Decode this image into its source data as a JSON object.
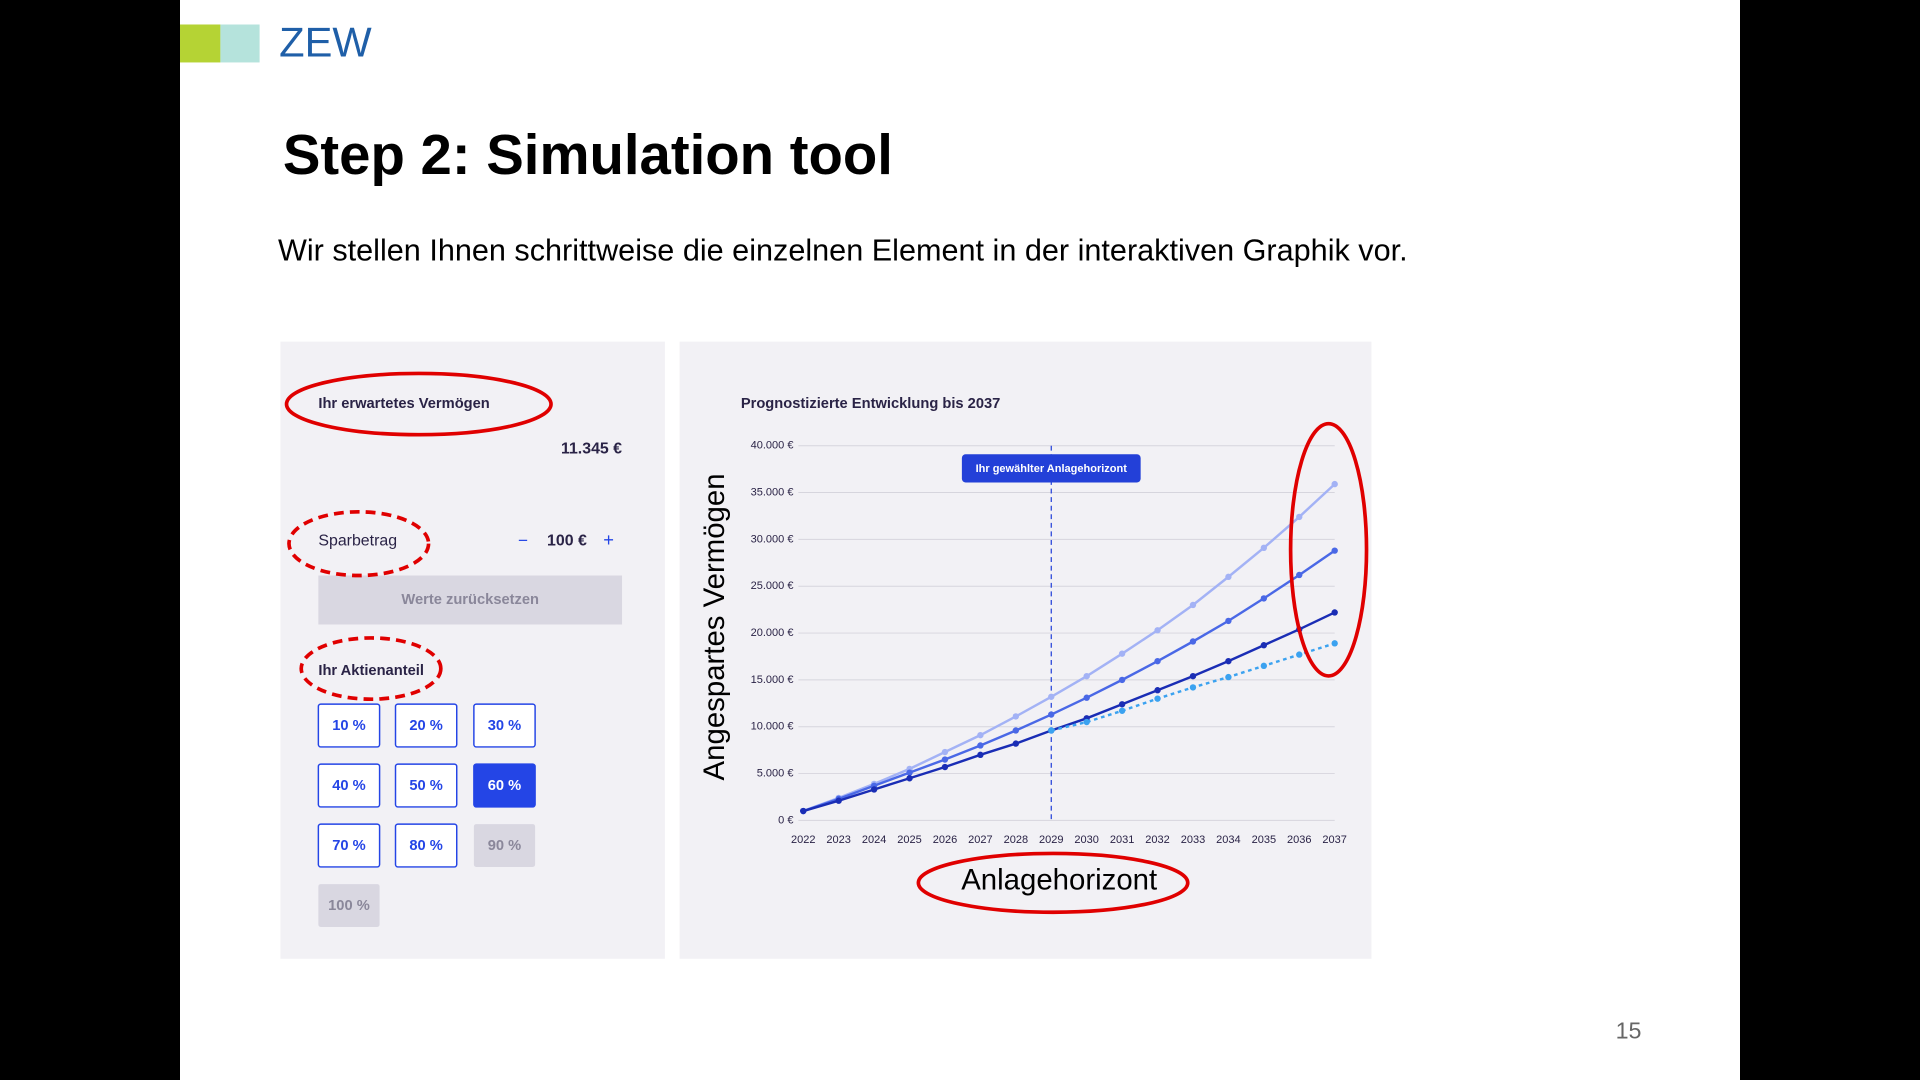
{
  "header": {
    "logo": "ZEW",
    "title": "Step 2: Simulation tool",
    "subtitle": "Wir stellen Ihnen schrittweise die einzelnen Element in der interaktiven Graphik vor.",
    "page_number": "15"
  },
  "panel": {
    "wealth_label": "Ihr erwartetes Vermögen",
    "wealth_value": "11.345 €",
    "savings_label": "Sparbetrag",
    "minus": "−",
    "savings_value": "100 €",
    "plus": "+",
    "reset": "Werte zurücksetzen",
    "share_label": "Ihr Aktienanteil",
    "share_buttons": [
      {
        "label": "10 %",
        "state": "enabled"
      },
      {
        "label": "20 %",
        "state": "enabled"
      },
      {
        "label": "30 %",
        "state": "enabled"
      },
      {
        "label": "40 %",
        "state": "enabled"
      },
      {
        "label": "50 %",
        "state": "enabled"
      },
      {
        "label": "60 %",
        "state": "selected"
      },
      {
        "label": "70 %",
        "state": "enabled"
      },
      {
        "label": "80 %",
        "state": "enabled"
      },
      {
        "label": "90 %",
        "state": "disabled"
      },
      {
        "label": "100 %",
        "state": "disabled"
      }
    ]
  },
  "chart_data": {
    "type": "line",
    "title": "Prognostizierte Entwicklung bis 2037",
    "y_label": "Angespartes Vermögen",
    "x_label": "Anlagehorizont",
    "annotation": {
      "text": "Ihr gewählter Anlagehorizont",
      "x": "2029"
    },
    "categories": [
      "2022",
      "2023",
      "2024",
      "2025",
      "2026",
      "2027",
      "2028",
      "2029",
      "2030",
      "2031",
      "2032",
      "2033",
      "2034",
      "2035",
      "2036",
      "2037"
    ],
    "series": [
      {
        "color": "#a3b2f5",
        "style": "solid",
        "values": [
          1000,
          2400,
          3900,
          5500,
          7300,
          9100,
          11100,
          13200,
          15400,
          17800,
          20300,
          23000,
          26000,
          29100,
          32400,
          35900
        ]
      },
      {
        "color": "#4a68e6",
        "style": "solid",
        "values": [
          1000,
          2300,
          3700,
          5100,
          6500,
          8000,
          9600,
          11300,
          13100,
          15000,
          17000,
          19100,
          21300,
          23700,
          26200,
          28800
        ]
      },
      {
        "color": "#1a2db5",
        "style": "solid",
        "values": [
          1000,
          2100,
          3300,
          4500,
          5700,
          7000,
          8200,
          9600,
          10900,
          12400,
          13900,
          15400,
          17000,
          18700,
          20400,
          22200
        ]
      },
      {
        "color": "#3ba2f0",
        "style": "dotted",
        "values": [
          null,
          null,
          null,
          null,
          null,
          null,
          null,
          9600,
          10500,
          11700,
          13000,
          14200,
          15300,
          16500,
          17700,
          18900
        ]
      }
    ],
    "ylim": [
      0,
      40000
    ],
    "yticks": [
      {
        "value": 0,
        "label": "0 €"
      },
      {
        "value": 5000,
        "label": "5.000 €"
      },
      {
        "value": 10000,
        "label": "10.000 €"
      },
      {
        "value": 15000,
        "label": "15.000 €"
      },
      {
        "value": 20000,
        "label": "20.000 €"
      },
      {
        "value": 25000,
        "label": "25.000 €"
      },
      {
        "value": 30000,
        "label": "30.000 €"
      },
      {
        "value": 35000,
        "label": "35.000 €"
      },
      {
        "value": 40000,
        "label": "40.000 €"
      }
    ],
    "grid": true
  }
}
